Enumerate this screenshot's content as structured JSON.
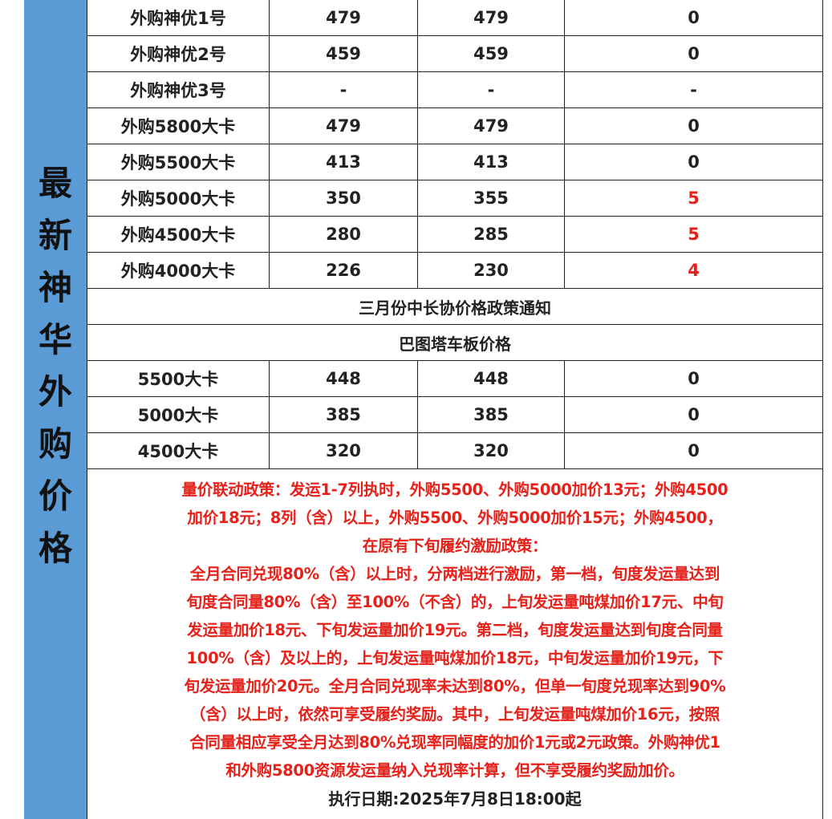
{
  "side_title": [
    "最",
    "新",
    "神",
    "华",
    "外",
    "购",
    "价",
    "格"
  ],
  "rows": [
    {
      "name": "外购神优1号",
      "a": "479",
      "b": "479",
      "diff": "0",
      "red": false
    },
    {
      "name": "外购神优2号",
      "a": "459",
      "b": "459",
      "diff": "0",
      "red": false
    },
    {
      "name": "外购神优3号",
      "a": "-",
      "b": "-",
      "diff": "-",
      "red": false
    },
    {
      "name": "外购5800大卡",
      "a": "479",
      "b": "479",
      "diff": "0",
      "red": false
    },
    {
      "name": "外购5500大卡",
      "a": "413",
      "b": "413",
      "diff": "0",
      "red": false
    },
    {
      "name": "外购5000大卡",
      "a": "350",
      "b": "355",
      "diff": "5",
      "red": true
    },
    {
      "name": "外购4500大卡",
      "a": "280",
      "b": "285",
      "diff": "5",
      "red": true
    },
    {
      "name": "外购4000大卡",
      "a": "226",
      "b": "230",
      "diff": "4",
      "red": true
    }
  ],
  "notice_title": "三月份中长协价格政策通知",
  "section_title": "巴图塔车板价格",
  "rows2": [
    {
      "name": "5500大卡",
      "a": "448",
      "b": "448",
      "diff": "0"
    },
    {
      "name": "5000大卡",
      "a": "385",
      "b": "385",
      "diff": "0"
    },
    {
      "name": "4500大卡",
      "a": "320",
      "b": "320",
      "diff": "0"
    }
  ],
  "policy_lines": [
    "量价联动政策：发运1-7列执时，外购5500、外购5000加价13元；外购4500",
    "加价18元；8列（含）以上，外购5500、外购5000加价15元；外购4500，",
    "在原有下旬履约激励政策：",
    "全月合同兑现80%（含）以上时，分两档进行激励，第一档，旬度发运量达到",
    "旬度合同量80%（含）至100%（不含）的，上旬发运量吨煤加价17元、中旬",
    "发运量加价18元、下旬发运量加价19元。第二档，旬度发运量达到旬度合同量",
    "100%（含）及以上的，上旬发运量吨煤加价18元，中旬发运量加价19元，下",
    "旬发运量加价20元。全月合同兑现率未达到80%，但单一旬度兑现率达到90%",
    "（含）以上时，依然可享受履约奖励。其中，上旬发运量吨煤加价16元，按照",
    "合同量相应享受全月达到80%兑现率同幅度的加价1元或2元政策。外购神优1",
    "和外购5800资源发运量纳入兑现率计算，但不享受履约奖励加价。"
  ],
  "effective_date": "执行日期:2025年7月8日18:00起",
  "colors": {
    "side": "#5b9bd5",
    "red": "#e8201a"
  }
}
